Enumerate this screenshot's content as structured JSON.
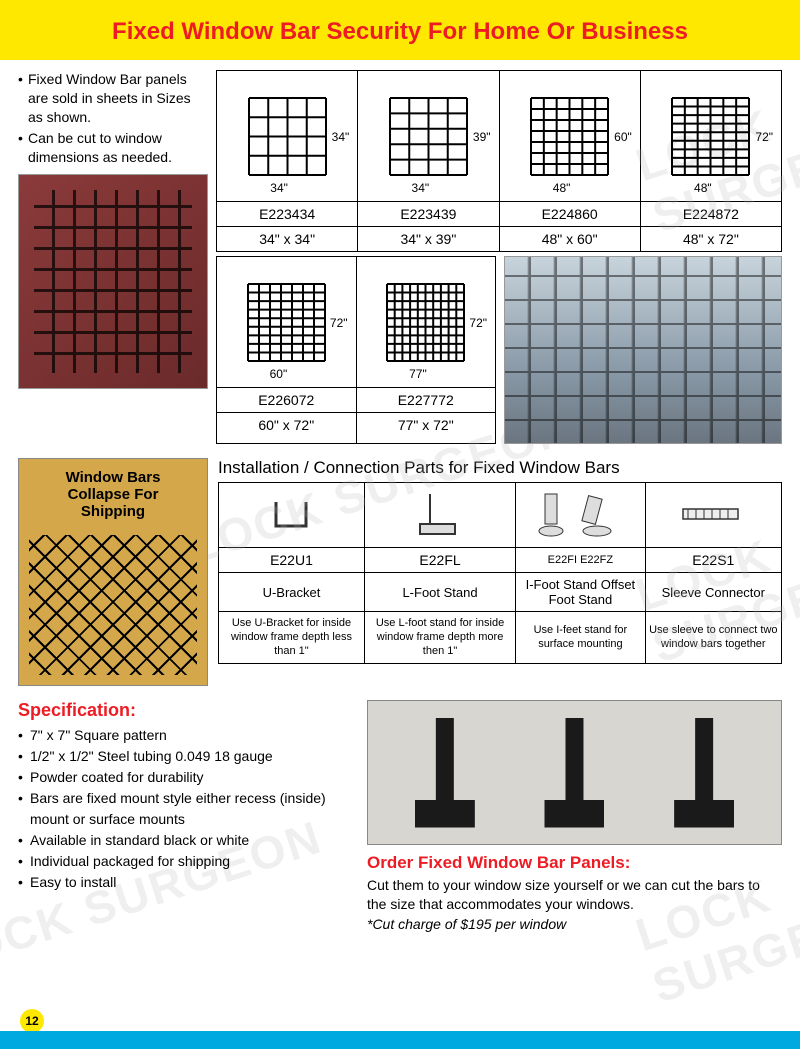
{
  "header": {
    "title": "Fixed Window Bar Security For Home Or Business"
  },
  "intro": {
    "bullets": [
      "Fixed Window Bar panels are sold in sheets in Sizes as shown.",
      "Can be cut to window dimensions as needed."
    ]
  },
  "products_row1": [
    {
      "sku": "E223434",
      "size": "34\" x 34\"",
      "w": "34\"",
      "h": "34\"",
      "cols": 5,
      "rows": 5
    },
    {
      "sku": "E223439",
      "size": "34\" x 39\"",
      "w": "34\"",
      "h": "39\"",
      "cols": 5,
      "rows": 6
    },
    {
      "sku": "E224860",
      "size": "48\" x 60\"",
      "w": "48\"",
      "h": "60\"",
      "cols": 7,
      "rows": 8
    },
    {
      "sku": "E224872",
      "size": "48\" x 72\"",
      "w": "48\"",
      "h": "72\"",
      "cols": 7,
      "rows": 10
    }
  ],
  "products_row2": [
    {
      "sku": "E226072",
      "size": "60\" x 72\"",
      "w": "60\"",
      "h": "72\"",
      "cols": 8,
      "rows": 10
    },
    {
      "sku": "E227772",
      "size": "77\" x 72\"",
      "w": "77\"",
      "h": "72\"",
      "cols": 11,
      "rows": 10
    }
  ],
  "collapse": {
    "line1": "Window Bars",
    "line2": "Collapse For",
    "line3": "Shipping"
  },
  "install": {
    "title": "Installation / Connection Parts for Fixed Window Bars",
    "parts": [
      {
        "sku": "E22U1",
        "name": "U-Bracket",
        "desc": "Use U-Bracket for inside window frame depth less than 1\""
      },
      {
        "sku": "E22FL",
        "name": "L-Foot Stand",
        "desc": "Use L-foot stand for inside window frame depth more then 1\""
      },
      {
        "sku": "E22FI    E22FZ",
        "name": "I-Foot Stand Offset Foot Stand",
        "desc": "Use I-feet stand for surface mounting"
      },
      {
        "sku": "E22S1",
        "name": "Sleeve Connector",
        "desc": "Use sleeve to connect two window bars together"
      }
    ]
  },
  "spec": {
    "title": "Specification:",
    "items": [
      "7\" x 7\" Square pattern",
      "1/2\" x 1/2\" Steel tubing 0.049  18 gauge",
      "Powder coated for durability",
      "Bars are fixed mount style either recess (inside) mount or surface mounts",
      "Available in standard black or white",
      "Individual packaged for shipping",
      "Easy to install"
    ]
  },
  "order": {
    "title": "Order Fixed Window Bar Panels:",
    "text": "Cut them to your window size yourself or we can cut the bars to the size that accommodates your windows.",
    "note": "*Cut charge of $195 per window"
  },
  "page_number": "12",
  "watermark": "LOCK SURGEON",
  "colors": {
    "header_bg": "#ffe800",
    "title_red": "#ed1c24",
    "footer_blue": "#00a9e0",
    "border": "#000000"
  }
}
